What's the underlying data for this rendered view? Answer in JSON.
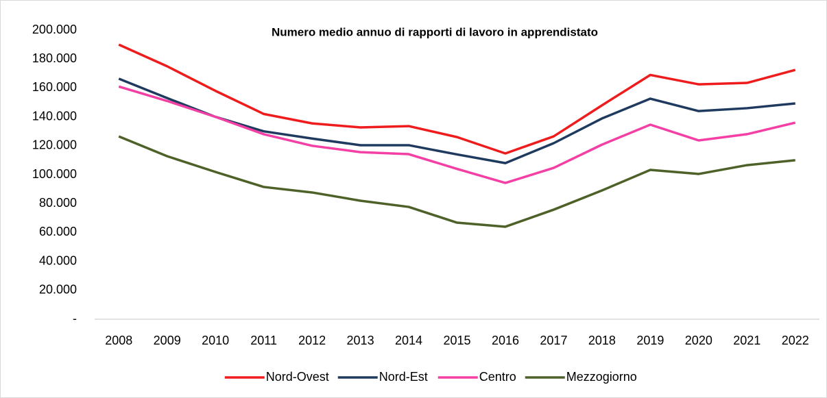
{
  "chart_data": {
    "type": "line",
    "title": "Numero medio annuo di rapporti di lavoro in apprendistato",
    "categories": [
      "2008",
      "2009",
      "2010",
      "2011",
      "2012",
      "2013",
      "2014",
      "2015",
      "2016",
      "2017",
      "2018",
      "2019",
      "2020",
      "2021",
      "2022"
    ],
    "series": [
      {
        "name": "Nord-Ovest",
        "color": "#ee1c1c",
        "values": [
          190000,
          175000,
          158000,
          142000,
          135500,
          132700,
          133600,
          126000,
          114700,
          126500,
          148000,
          169000,
          162500,
          163500,
          172500
        ]
      },
      {
        "name": "Nord-Est",
        "color": "#1f3a5f",
        "values": [
          166400,
          153000,
          140000,
          130000,
          125000,
          120400,
          120400,
          114000,
          108000,
          121800,
          138900,
          152600,
          144000,
          146000,
          149300
        ]
      },
      {
        "name": "Centro",
        "color": "#f43fa5",
        "values": [
          161000,
          151000,
          140000,
          128000,
          120000,
          115600,
          114200,
          104000,
          94300,
          104700,
          120800,
          134600,
          123700,
          128000,
          136000
        ]
      },
      {
        "name": "Mezzogiorno",
        "color": "#4e6128",
        "values": [
          126500,
          112800,
          101900,
          91500,
          87700,
          82000,
          77700,
          66800,
          64000,
          75800,
          89100,
          103300,
          100500,
          106600,
          110000
        ]
      }
    ],
    "ylim": [
      0,
      200000
    ],
    "yticks": [
      {
        "value": 0,
        "label": "-"
      },
      {
        "value": 20000,
        "label": "20.000"
      },
      {
        "value": 40000,
        "label": "40.000"
      },
      {
        "value": 60000,
        "label": "60.000"
      },
      {
        "value": 80000,
        "label": "80.000"
      },
      {
        "value": 100000,
        "label": "100.000"
      },
      {
        "value": 120000,
        "label": "120.000"
      },
      {
        "value": 140000,
        "label": "140.000"
      },
      {
        "value": 160000,
        "label": "160.000"
      },
      {
        "value": 180000,
        "label": "180.000"
      },
      {
        "value": 200000,
        "label": "200.000"
      }
    ],
    "legend": "bottom"
  }
}
